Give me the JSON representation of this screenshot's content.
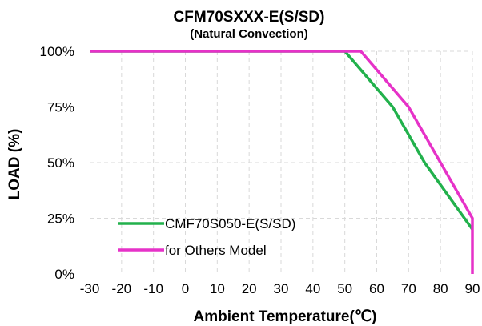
{
  "chart_data": {
    "type": "line",
    "title": "CFM70SXXX-E(S/SD)",
    "subtitle": "(Natural Convection)",
    "xlabel": "Ambient Temperature(℃)",
    "ylabel": "LOAD (%)",
    "xlim": [
      -30,
      90
    ],
    "ylim": [
      0,
      100
    ],
    "x_ticks": [
      "-30",
      "-20",
      "-10",
      "0",
      "10",
      "20",
      "30",
      "40",
      "50",
      "60",
      "70",
      "80",
      "90"
    ],
    "y_ticks": [
      "0%",
      "25%",
      "50%",
      "75%",
      "100%"
    ],
    "y_tick_values": [
      0,
      25,
      50,
      75,
      100
    ],
    "grid": true,
    "legend_position": "bottom-left",
    "series": [
      {
        "name": "CMF70S050-E(S/SD)",
        "color": "#22b14c",
        "points": [
          [
            -30,
            100
          ],
          [
            50,
            100
          ],
          [
            65,
            75
          ],
          [
            75,
            50
          ],
          [
            90,
            20
          ]
        ]
      },
      {
        "name": "for Others Model",
        "color": "#e632c8",
        "points": [
          [
            -30,
            100
          ],
          [
            55,
            100
          ],
          [
            70,
            75
          ],
          [
            90,
            25
          ],
          [
            90,
            0
          ]
        ]
      }
    ]
  }
}
